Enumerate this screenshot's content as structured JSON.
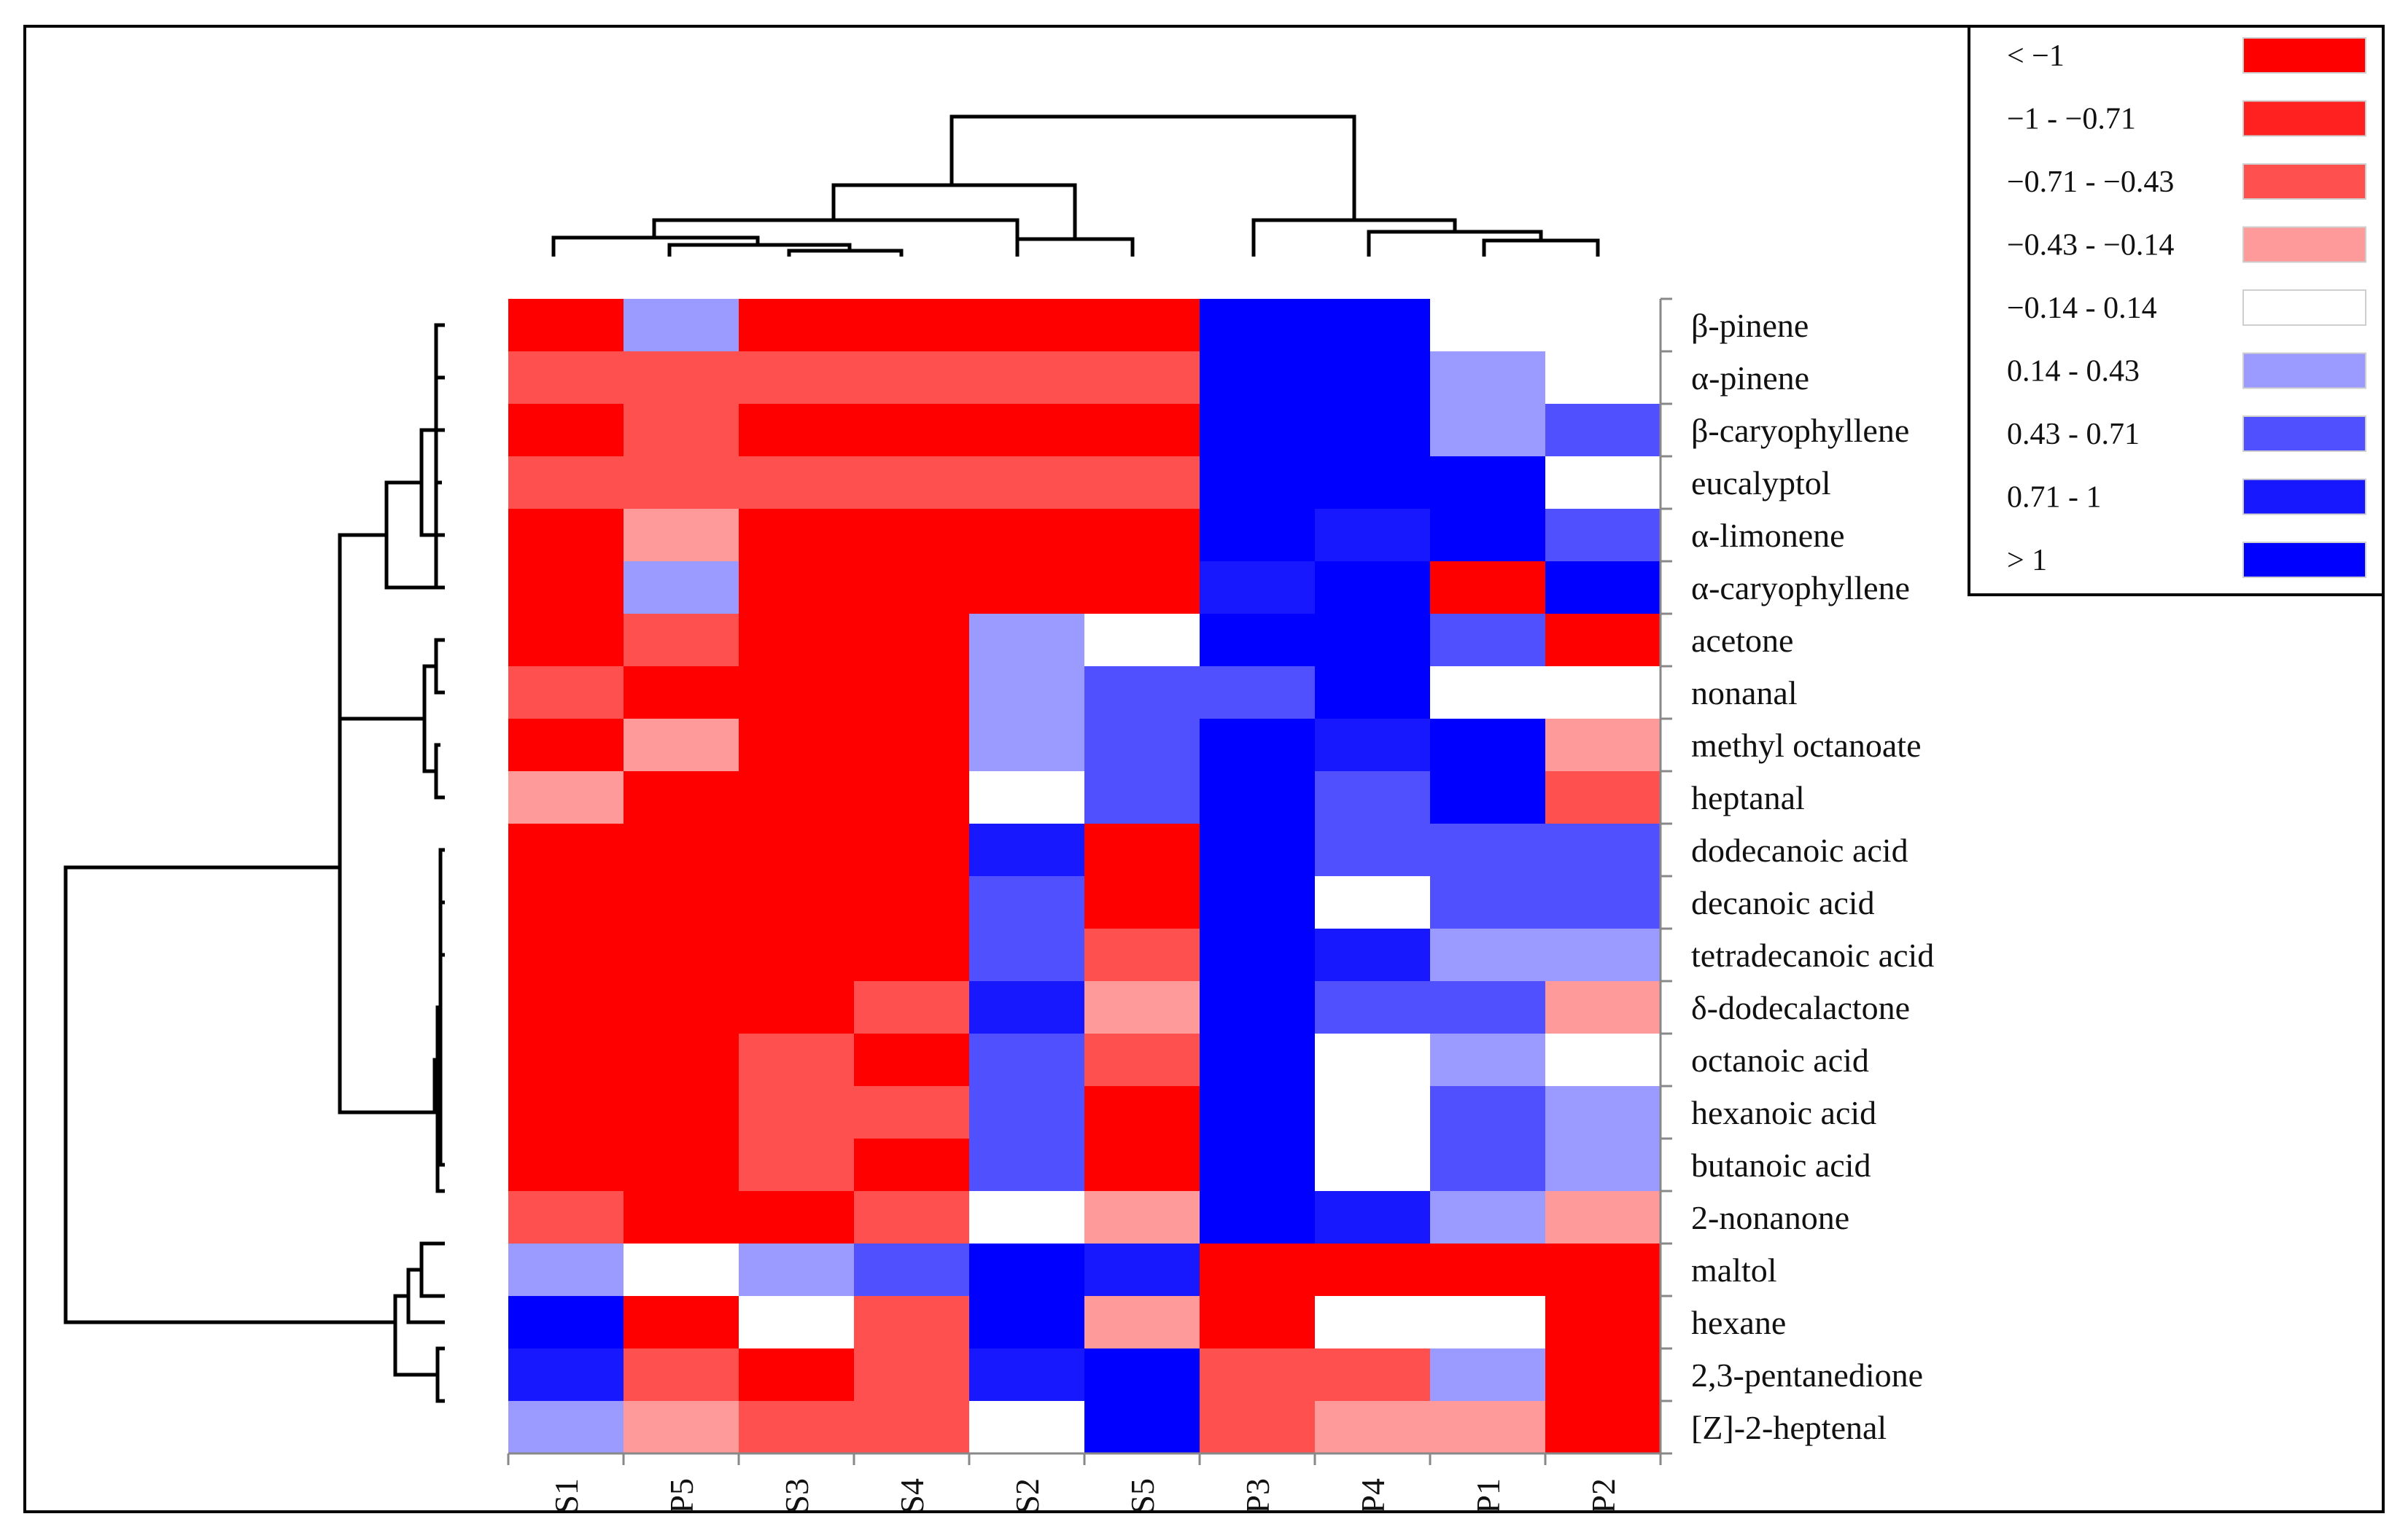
{
  "chart_data": {
    "type": "heatmap",
    "title": "",
    "columns": [
      "S1",
      "P5",
      "S3",
      "S4",
      "S2",
      "S5",
      "P3",
      "P4",
      "P1",
      "P2"
    ],
    "rows": [
      "β-pinene",
      "α-pinene",
      "β-caryophyllene",
      "eucalyptol",
      "α-limonene",
      "α-caryophyllene",
      "acetone",
      "nonanal",
      "methyl octanoate",
      "heptanal",
      "dodecanoic acid",
      "decanoic acid",
      "tetradecanoic acid",
      "δ-dodecalactone",
      "octanoic acid",
      "hexanoic acid",
      "butanoic acid",
      "2-nonanone",
      "maltol",
      "hexane",
      "2,3-pentanedione",
      "[Z]-2-heptenal"
    ],
    "values": [
      [
        -1.2,
        0.3,
        -1.2,
        -1.2,
        -1.2,
        -1.2,
        1.5,
        1.5,
        0,
        0
      ],
      [
        -0.6,
        -0.6,
        -0.6,
        -0.6,
        -0.6,
        -0.6,
        1.5,
        1.5,
        0.3,
        0
      ],
      [
        -1.2,
        -0.6,
        -1.2,
        -1.2,
        -1.2,
        -1.2,
        1.5,
        1.5,
        0.3,
        0.6
      ],
      [
        -0.6,
        -0.6,
        -0.6,
        -0.6,
        -0.6,
        -0.6,
        1.5,
        1.5,
        1.5,
        0
      ],
      [
        -1.2,
        -0.3,
        -1.2,
        -1.2,
        -1.2,
        -1.2,
        1.5,
        0.9,
        1.5,
        0.6
      ],
      [
        -1.2,
        0.3,
        -1.2,
        -1.2,
        -1.2,
        -1.2,
        0.9,
        1.5,
        -1.2,
        1.5
      ],
      [
        -1.2,
        -0.6,
        -1.5,
        -1.5,
        0.3,
        0,
        1.5,
        1.5,
        0.6,
        -1.2
      ],
      [
        -0.6,
        -1.2,
        -1.2,
        -1.5,
        0.3,
        0.6,
        0.6,
        1.5,
        0,
        0
      ],
      [
        -1.5,
        -0.3,
        -1.5,
        -1.5,
        0.3,
        0.6,
        1.5,
        0.9,
        1.5,
        -0.3
      ],
      [
        -0.3,
        -1.2,
        -1.5,
        -1.5,
        0,
        0.6,
        1.5,
        0.6,
        1.5,
        -0.6
      ],
      [
        -1.2,
        -1.2,
        -1.2,
        -1.2,
        0.9,
        -1.2,
        1.5,
        0.6,
        0.6,
        0.6
      ],
      [
        -1.2,
        -1.2,
        -1.2,
        -1.2,
        0.6,
        -1.2,
        1.5,
        0,
        0.6,
        0.6
      ],
      [
        -1.5,
        -1.2,
        -1.2,
        -1.2,
        0.6,
        -0.6,
        1.5,
        0.9,
        0.3,
        0.3
      ],
      [
        -1.2,
        -1.5,
        -1.2,
        -0.6,
        0.9,
        -0.3,
        1.5,
        0.6,
        0.6,
        -0.3
      ],
      [
        -1.2,
        -1.2,
        -0.6,
        -1.2,
        0.6,
        -0.6,
        1.5,
        0,
        0.3,
        0
      ],
      [
        -1.2,
        -1.2,
        -0.6,
        -0.6,
        0.6,
        -1.2,
        1.5,
        0,
        0.6,
        0.3
      ],
      [
        -1.2,
        -1.2,
        -0.6,
        -1.2,
        0.6,
        -1.2,
        1.5,
        0,
        0.6,
        0.3
      ],
      [
        -0.6,
        -1.2,
        -1.2,
        -0.6,
        0,
        -0.3,
        1.5,
        0.9,
        0.3,
        -0.3
      ],
      [
        0.3,
        0,
        0.3,
        0.6,
        1.5,
        0.9,
        -1.5,
        -1.5,
        -1.5,
        -1.5
      ],
      [
        1.5,
        -1.2,
        0,
        -0.6,
        1.5,
        -0.3,
        -1.2,
        0,
        0,
        -1.5
      ],
      [
        0.9,
        -0.6,
        -1.2,
        -0.6,
        0.9,
        1.5,
        -0.6,
        -0.6,
        0.3,
        -1.2
      ],
      [
        0.3,
        -0.3,
        -0.6,
        -0.6,
        0,
        1.5,
        -0.6,
        -0.3,
        -0.3,
        -1.2
      ]
    ],
    "legend": [
      {
        "label": "< −1",
        "color": "#ff0000"
      },
      {
        "label": "−1 - −0.71",
        "color": "#ff2020"
      },
      {
        "label": "−0.71 - −0.43",
        "color": "#ff5050"
      },
      {
        "label": "−0.43 - −0.14",
        "color": "#ff9a9a"
      },
      {
        "label": "−0.14 - 0.14",
        "color": "#ffffff"
      },
      {
        "label": "0.14 - 0.43",
        "color": "#9a9aff"
      },
      {
        "label": "0.43 - 0.71",
        "color": "#5050ff"
      },
      {
        "label": "0.71 - 1",
        "color": "#1818ff"
      },
      {
        "label": "> 1",
        "color": "#0000ff"
      }
    ],
    "legend_position": "top-right",
    "thresholds": [
      -1,
      -0.71,
      -0.43,
      -0.14,
      0.14,
      0.43,
      0.71,
      1
    ],
    "column_dendrogram_height": [
      0.02,
      0.1,
      0.22,
      0.18,
      0.25,
      0.55,
      1.0,
      0.1,
      0.18,
      0.55
    ],
    "row_clusters": "hierarchical"
  }
}
